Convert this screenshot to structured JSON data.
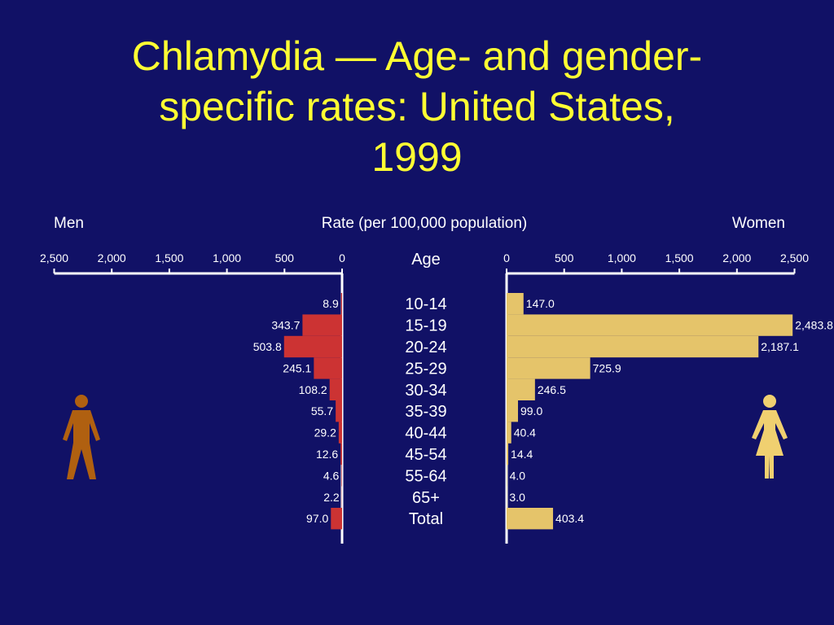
{
  "title": {
    "lines": [
      "Chlamydia  —  Age- and gender-",
      "specific rates: United States,",
      "1999"
    ]
  },
  "colors": {
    "background": "#111166",
    "title": "#ffff33",
    "men_bar": "#cc3333",
    "women_bar": "#e5c46a",
    "man_icon": "#b06010",
    "woman_icon": "#f0d070",
    "axis": "#ffffff"
  },
  "icons": {
    "men": "man-figure-icon",
    "women": "woman-figure-icon"
  },
  "chart_data": {
    "type": "bar",
    "orientation": "horizontal-butterfly",
    "title": "Chlamydia  —  Age- and gender-specific rates: United States, 1999",
    "xlabel": "Rate (per 100,000 population)",
    "category_header": "Age",
    "categories": [
      "10-14",
      "15-19",
      "20-24",
      "25-29",
      "30-34",
      "35-39",
      "40-44",
      "45-54",
      "55-64",
      "65+",
      "Total"
    ],
    "ticks": [
      0,
      500,
      1000,
      1500,
      2000,
      2500
    ],
    "tick_labels": [
      "0",
      "500",
      "1,000",
      "1,500",
      "2,000",
      "2,500"
    ],
    "xlim": [
      0,
      2500
    ],
    "grid": false,
    "series": [
      {
        "name": "Men",
        "side": "left",
        "values": [
          8.9,
          343.7,
          503.8,
          245.1,
          108.2,
          55.7,
          29.2,
          12.6,
          4.6,
          2.2,
          97.0
        ],
        "labels": [
          "8.9",
          "343.7",
          "503.8",
          "245.1",
          "108.2",
          "55.7",
          "29.2",
          "12.6",
          "4.6",
          "2.2",
          "97.0"
        ]
      },
      {
        "name": "Women",
        "side": "right",
        "values": [
          147.0,
          2483.8,
          2187.1,
          725.9,
          246.5,
          99.0,
          40.4,
          14.4,
          4.0,
          3.0,
          403.4
        ],
        "labels": [
          "147.0",
          "2,483.8",
          "2,187.1",
          "725.9",
          "246.5",
          "99.0",
          "40.4",
          "14.4",
          "4.0",
          "3.0",
          "403.4"
        ]
      }
    ]
  }
}
